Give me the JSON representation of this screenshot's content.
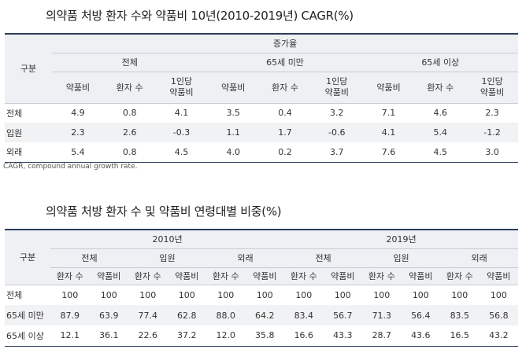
{
  "table1": {
    "title": "의약품 처방 환자 수와 약품비 10년(2010-2019년) CAGR(%)",
    "gubun": "구분",
    "group_header": "증가율",
    "subgroups": [
      "전체",
      "65세 미만",
      "65세 이상"
    ],
    "col_drug": "약품비",
    "col_patients": "환자 수",
    "col_per1": "1인당",
    "col_per2": "약품비",
    "rows": [
      {
        "label": "전체",
        "values": [
          "4.9",
          "0.8",
          "4.1",
          "3.5",
          "0.4",
          "3.2",
          "7.1",
          "4.6",
          "2.3"
        ]
      },
      {
        "label": "입원",
        "values": [
          "2.3",
          "2.6",
          "-0.3",
          "1.1",
          "1.7",
          "-0.6",
          "4.1",
          "5.4",
          "-1.2"
        ]
      },
      {
        "label": "외래",
        "values": [
          "5.4",
          "0.8",
          "4.5",
          "4.0",
          "0.2",
          "3.7",
          "7.6",
          "4.5",
          "3.0"
        ]
      }
    ],
    "note": "CAGR, compound annual growth rate."
  },
  "table2": {
    "title": "의약품 처방 환자 수 및 약품비 연령대별 비중(%)",
    "gubun": "구분",
    "years": [
      "2010년",
      "2019년"
    ],
    "subgroups": [
      "전체",
      "입원",
      "외래"
    ],
    "col_patients": "환자 수",
    "col_drug": "약품비",
    "rows": [
      {
        "label": "전체",
        "values": [
          "100",
          "100",
          "100",
          "100",
          "100",
          "100",
          "100",
          "100",
          "100",
          "100",
          "100",
          "100"
        ]
      },
      {
        "label": "65세 미만",
        "values": [
          "87.9",
          "63.9",
          "77.4",
          "62.8",
          "88.0",
          "64.2",
          "83.4",
          "56.7",
          "71.3",
          "56.4",
          "83.5",
          "56.8"
        ]
      },
      {
        "label": "65세 이상",
        "values": [
          "12.1",
          "36.1",
          "22.6",
          "37.2",
          "12.0",
          "35.8",
          "16.6",
          "43.3",
          "28.7",
          "43.6",
          "16.5",
          "43.2"
        ]
      }
    ]
  }
}
